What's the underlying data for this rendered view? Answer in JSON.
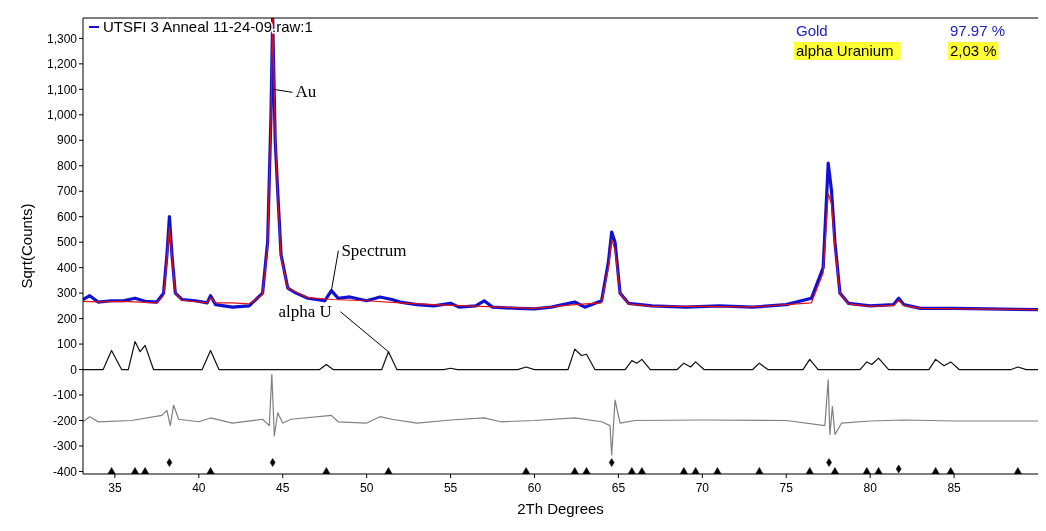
{
  "chart_data": {
    "type": "line",
    "xlabel": "2Th Degrees",
    "ylabel": "Sqrt(Counts)",
    "xlim": [
      33.1,
      90
    ],
    "xticks": [
      35,
      40,
      45,
      50,
      55,
      60,
      65,
      70,
      75,
      80,
      85
    ],
    "ylim": [
      -410,
      1380
    ],
    "yticks": [
      -400,
      -300,
      -200,
      -100,
      0,
      100,
      200,
      300,
      400,
      500,
      600,
      700,
      800,
      900,
      {
        "value": 1000,
        "label": "1,000"
      },
      {
        "value": 1100,
        "label": "1,100"
      },
      {
        "value": 1200,
        "label": "1,200"
      },
      {
        "value": 1300,
        "label": "1,300"
      }
    ],
    "legend": "top left",
    "grid": false,
    "series": [
      {
        "name": "UTSFI 3 Anneal 11-24-09.raw:1",
        "color": "#1010d0",
        "x": [
          33.1,
          33.5,
          34,
          34.8,
          35.5,
          36.2,
          36.8,
          37.5,
          37.9,
          38.1,
          38.25,
          38.4,
          38.6,
          39,
          39.8,
          40.5,
          40.7,
          41,
          42,
          43,
          43.8,
          44.1,
          44.3,
          44.4,
          44.55,
          44.7,
          44.9,
          45.3,
          45.8,
          46.5,
          47.5,
          47.9,
          48.3,
          49,
          50,
          50.8,
          51.5,
          52,
          53,
          54,
          55,
          55.5,
          56.5,
          57,
          57.5,
          59,
          60,
          61,
          62.4,
          63,
          64,
          64.4,
          64.6,
          64.8,
          65.1,
          65.6,
          67,
          69,
          71,
          73,
          75,
          76.5,
          77.2,
          77.5,
          77.7,
          77.9,
          78.2,
          78.7,
          80,
          81.4,
          81.7,
          82,
          83,
          85,
          87,
          90
        ],
        "values": [
          275,
          290,
          265,
          270,
          270,
          280,
          268,
          265,
          300,
          450,
          600,
          450,
          300,
          275,
          270,
          262,
          290,
          255,
          245,
          250,
          300,
          500,
          1000,
          1380,
          900,
          700,
          450,
          320,
          300,
          280,
          270,
          310,
          280,
          285,
          270,
          285,
          275,
          265,
          255,
          250,
          260,
          245,
          250,
          270,
          245,
          240,
          238,
          245,
          265,
          245,
          270,
          420,
          540,
          500,
          300,
          260,
          250,
          245,
          250,
          245,
          255,
          280,
          400,
          810,
          700,
          500,
          300,
          260,
          250,
          255,
          280,
          255,
          240,
          240,
          238,
          235
        ]
      },
      {
        "color": "#e01010",
        "x": [
          33.1,
          34,
          35.5,
          37.5,
          37.9,
          38.1,
          38.25,
          38.4,
          38.6,
          39,
          40.5,
          40.7,
          41,
          42,
          43,
          43.8,
          44.1,
          44.3,
          44.4,
          44.55,
          44.7,
          44.9,
          45.3,
          46.5,
          48,
          50,
          52,
          54,
          56,
          58,
          60,
          62.4,
          64,
          64.4,
          64.6,
          64.8,
          65.1,
          65.6,
          67,
          70,
          73,
          76.5,
          77.2,
          77.5,
          77.7,
          77.9,
          78.2,
          78.7,
          80,
          81.4,
          81.7,
          82,
          83,
          86,
          90
        ],
        "values": [
          268,
          266,
          268,
          262,
          290,
          430,
          560,
          440,
          300,
          272,
          262,
          282,
          262,
          262,
          258,
          295,
          480,
          980,
          1380,
          920,
          680,
          440,
          320,
          282,
          275,
          270,
          262,
          255,
          250,
          245,
          240,
          255,
          262,
          400,
          510,
          470,
          300,
          258,
          248,
          248,
          246,
          262,
          380,
          690,
          650,
          480,
          300,
          258,
          248,
          252,
          272,
          252,
          240,
          238,
          235
        ]
      },
      {
        "color": "#101010",
        "x": [
          33.1,
          34.3,
          34.8,
          35.4,
          35.8,
          36.2,
          36.5,
          36.8,
          37.3,
          40.2,
          40.7,
          41.2,
          47.2,
          47.6,
          48,
          50.9,
          51.3,
          51.8,
          54.6,
          55,
          55.4,
          59,
          59.5,
          60,
          62,
          62.4,
          62.8,
          63.1,
          63.6,
          65.4,
          65.8,
          66.1,
          66.4,
          66.9,
          68.5,
          68.9,
          69.3,
          69.6,
          70.1,
          73,
          73.4,
          73.9,
          76,
          76.4,
          76.9,
          79.4,
          79.8,
          80.1,
          80.5,
          81.1,
          83.5,
          83.9,
          84.4,
          84.8,
          85.3,
          88.4,
          88.8,
          89.3,
          90
        ],
        "values": [
          0,
          0,
          75,
          0,
          0,
          110,
          70,
          95,
          0,
          0,
          75,
          0,
          0,
          20,
          0,
          0,
          70,
          0,
          0,
          5,
          0,
          0,
          10,
          0,
          0,
          80,
          55,
          60,
          0,
          0,
          35,
          25,
          40,
          0,
          0,
          25,
          10,
          30,
          0,
          0,
          25,
          0,
          0,
          40,
          0,
          0,
          30,
          20,
          45,
          0,
          0,
          40,
          15,
          30,
          0,
          0,
          10,
          0,
          0
        ]
      },
      {
        "color": "#808080",
        "x": [
          33.1,
          33.5,
          34,
          36,
          37.8,
          38.1,
          38.3,
          38.5,
          38.8,
          40,
          40.7,
          42,
          43.8,
          44.2,
          44.35,
          44.5,
          44.7,
          45,
          45.5,
          47.9,
          48.3,
          50,
          50.8,
          51.5,
          53,
          55,
          57,
          58,
          60,
          62.4,
          64,
          64.5,
          64.6,
          64.8,
          65.1,
          66,
          70,
          75,
          77.3,
          77.5,
          77.6,
          77.75,
          77.9,
          78.3,
          80,
          82,
          85,
          90
        ],
        "values": [
          -205,
          -185,
          -205,
          -200,
          -180,
          -160,
          -220,
          -140,
          -195,
          -205,
          -190,
          -210,
          -195,
          -220,
          -20,
          -260,
          -170,
          -210,
          -195,
          -180,
          -205,
          -210,
          -185,
          -195,
          -210,
          -198,
          -190,
          -205,
          -200,
          -190,
          -205,
          -220,
          -335,
          -120,
          -210,
          -200,
          -198,
          -200,
          -220,
          -40,
          -255,
          -145,
          -255,
          -210,
          -202,
          -198,
          -202,
          -202
        ]
      },
      {
        "type": "scatter",
        "marker": "triangle",
        "color": "#000000",
        "x": [
          34.8,
          36.2,
          36.8,
          40.7,
          47.6,
          51.3,
          59.5,
          62.4,
          63.1,
          65.8,
          66.4,
          68.9,
          69.6,
          70.9,
          73.4,
          76.4,
          77.9,
          79.8,
          80.5,
          83.9,
          84.8,
          88.8
        ],
        "values": [
          -400,
          -400,
          -400,
          -400,
          -400,
          -400,
          -400,
          -400,
          -400,
          -400,
          -400,
          -400,
          -400,
          -400,
          -400,
          -400,
          -400,
          -400,
          -400,
          -400,
          -400,
          -400
        ]
      },
      {
        "type": "scatter",
        "marker": "diamond",
        "color": "#000000",
        "x": [
          38.25,
          44.4,
          64.6,
          77.55,
          81.7
        ],
        "values": [
          -365,
          -365,
          -365,
          -365,
          -390
        ]
      }
    ],
    "annotations": [
      {
        "text": "Au",
        "x": 44.45,
        "y": 1100
      },
      {
        "text": "alpha U",
        "x": 51.3,
        "y": 70
      },
      {
        "text": "Spectrum",
        "x": 47.9,
        "y": 310
      },
      "Gold",
      "97.97 %",
      "alpha Uranium",
      "2,03 %"
    ]
  }
}
